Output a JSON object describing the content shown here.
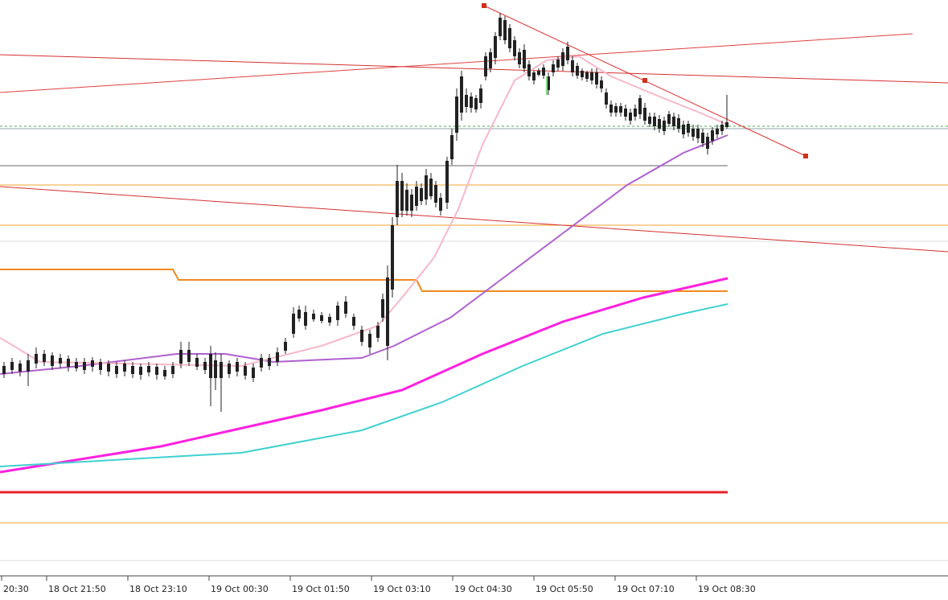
{
  "time_axis": {
    "labels": [
      "20:30",
      "18 Oct 21:50",
      "18 Oct 23:10",
      "19 Oct 00:30",
      "19 Oct 01:50",
      "19 Oct 03:10",
      "19 Oct 04:30",
      "19 Oct 05:50",
      "19 Oct 07:10",
      "19 Oct 08:30"
    ]
  }
}
